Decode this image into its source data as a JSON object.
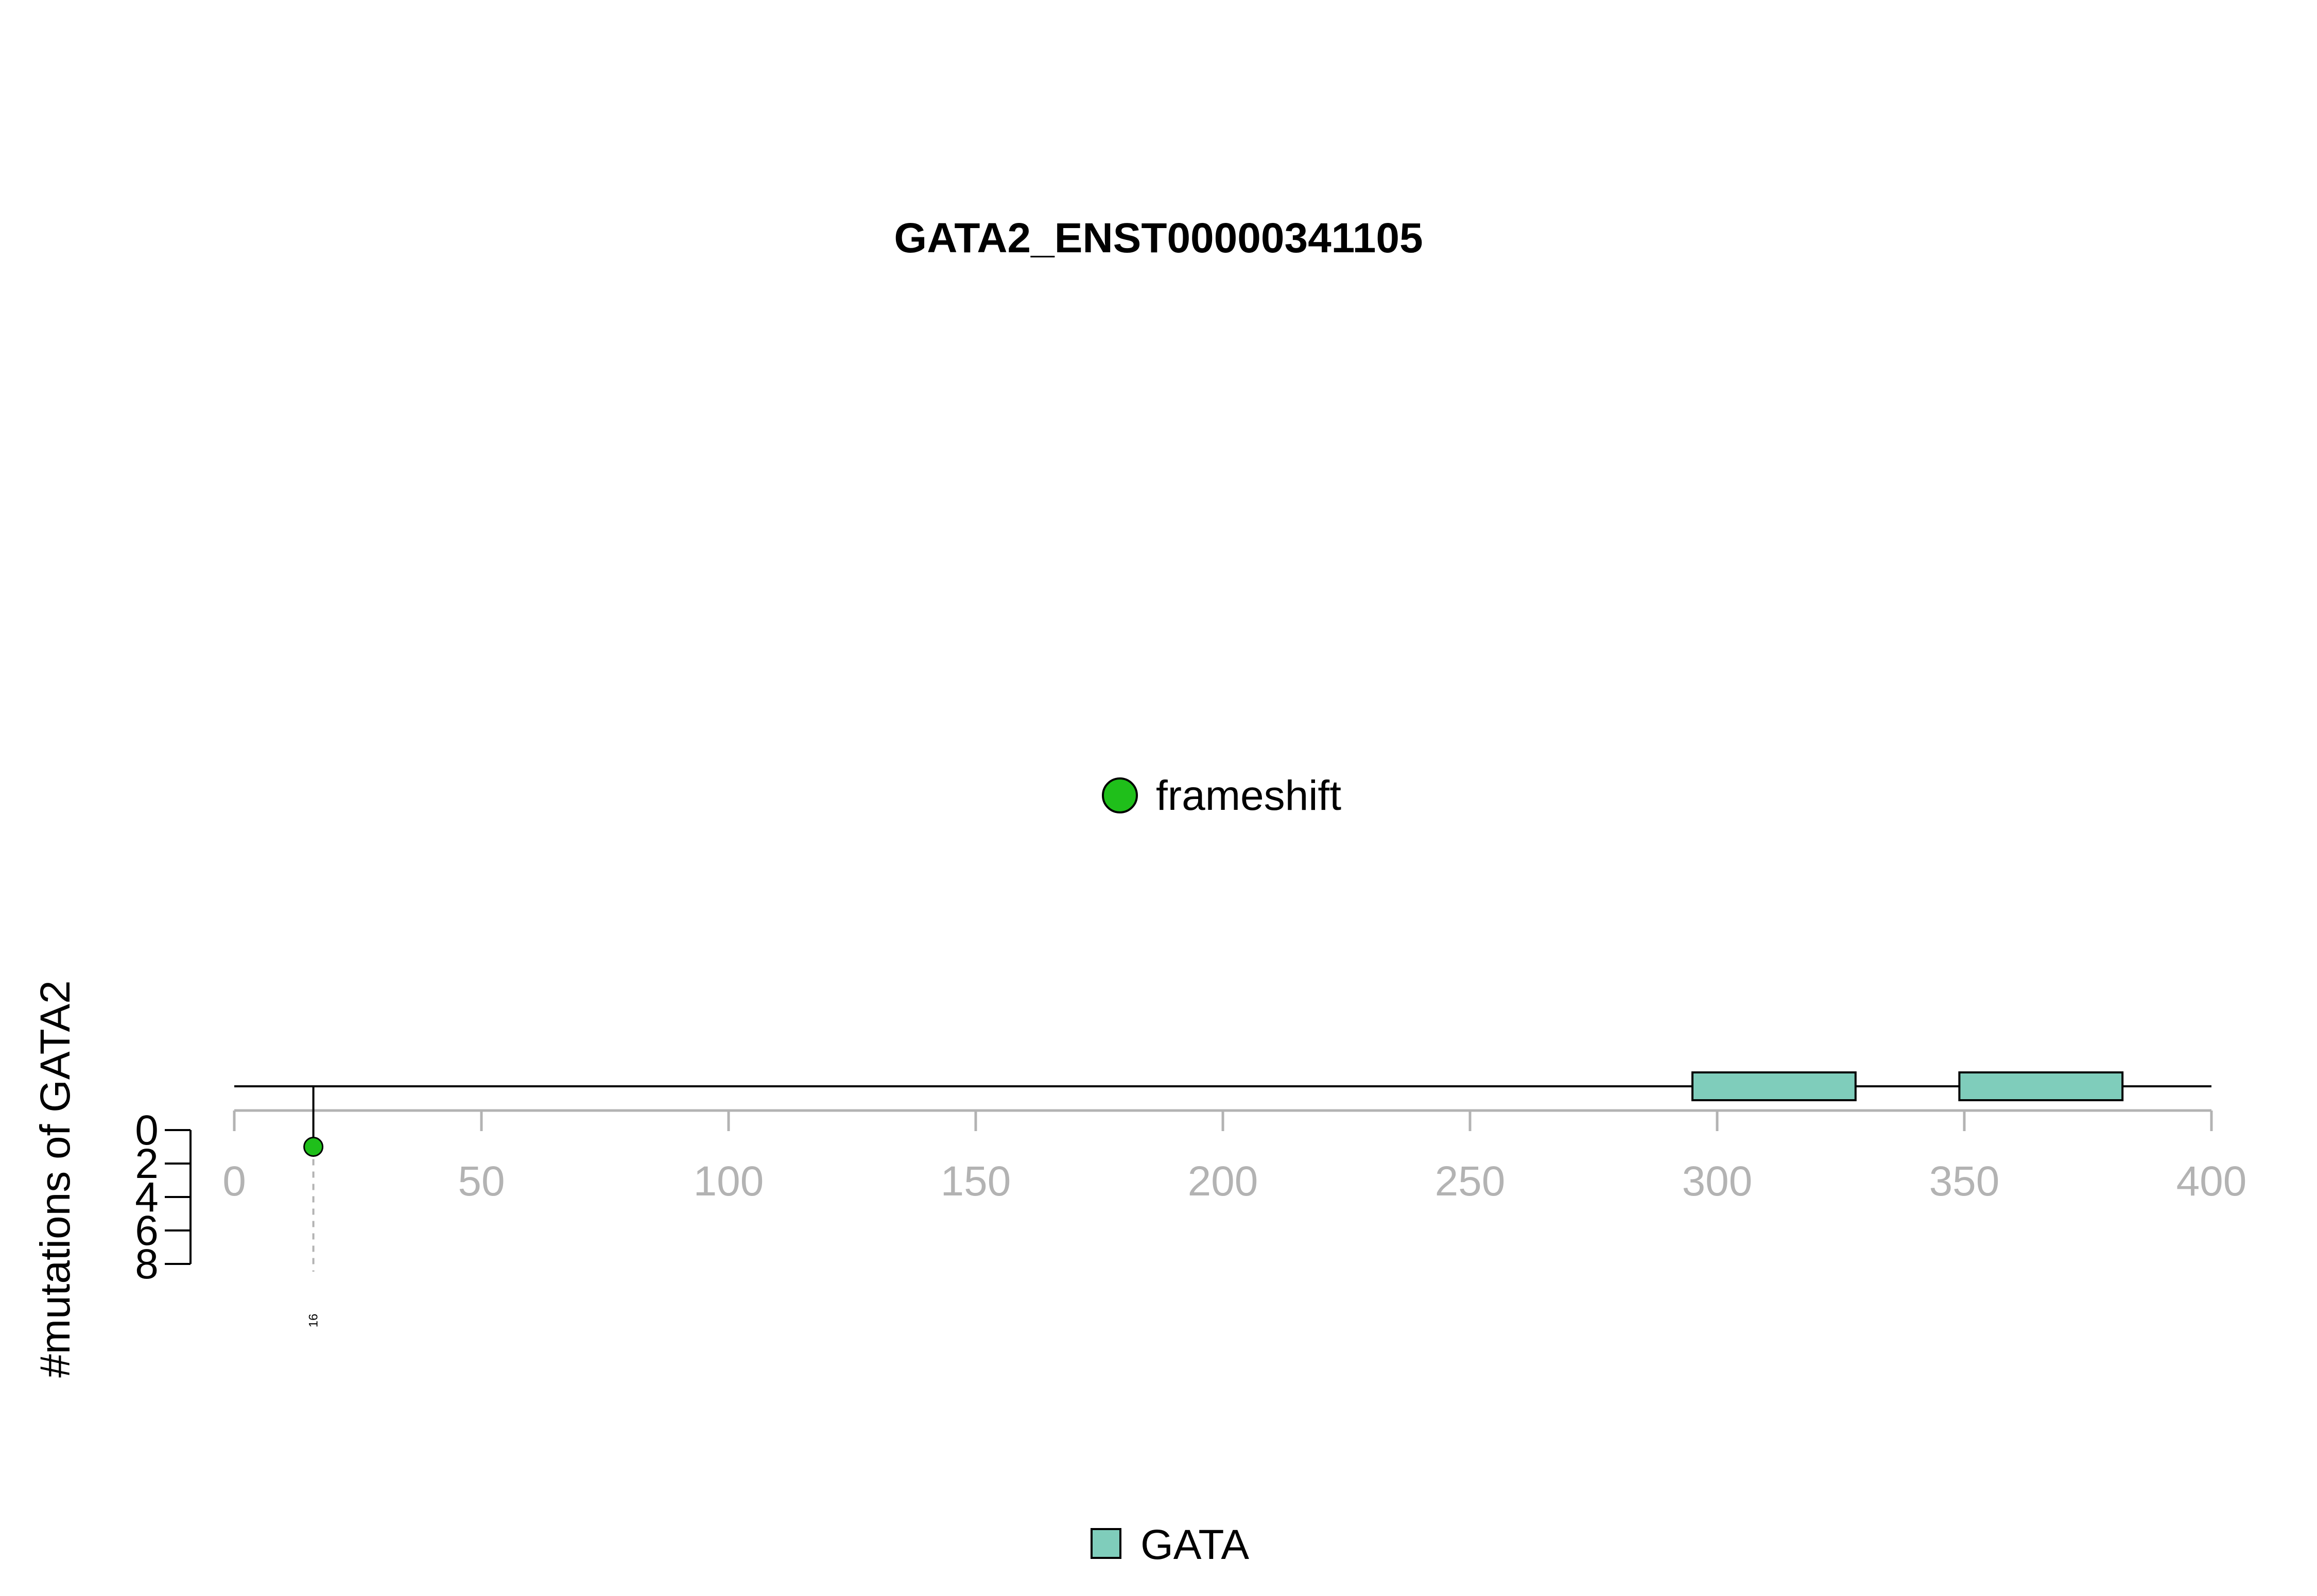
{
  "chart_data": {
    "type": "lollipop",
    "title": "GATA2_ENST00000341105",
    "xlabel": "",
    "ylabel": "#mutations of GATA2",
    "xlim": [
      0,
      400
    ],
    "x_ticks": [
      0,
      50,
      100,
      150,
      200,
      250,
      300,
      350,
      400
    ],
    "y_ticks": [
      0,
      2,
      4,
      6,
      8
    ],
    "protein_length": 400,
    "domains": [
      {
        "name": "GATA",
        "start": 295,
        "end": 328
      },
      {
        "name": "GATA",
        "start": 349,
        "end": 382
      }
    ],
    "mutations": [
      {
        "position": 16,
        "count": 1,
        "type": "frameshift",
        "label": "16"
      }
    ],
    "mutation_legend": [
      {
        "label": "frameshift",
        "color": "#1fbf1a"
      }
    ],
    "domain_legend": [
      {
        "label": "GATA",
        "color": "#7fcdbb"
      }
    ],
    "colors": {
      "frameshift": "#1fbf1a",
      "domain": "#7fcdbb",
      "axis": "#b3b3b3",
      "stroke": "#000000"
    }
  }
}
